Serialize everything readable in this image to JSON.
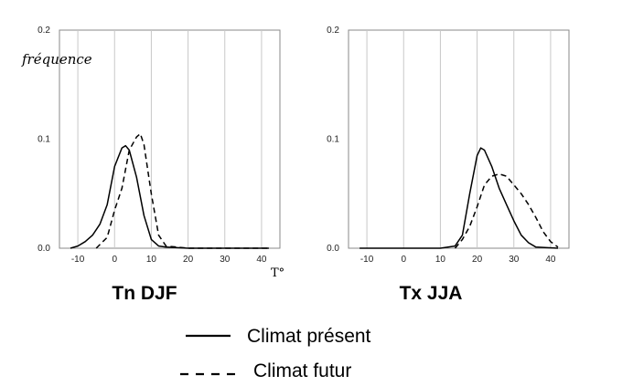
{
  "chart_data": [
    {
      "type": "line",
      "title": "Tn DJF",
      "ylabel": "fréquence",
      "xlabel": "T°",
      "xlim": [
        -15,
        45
      ],
      "ylim": [
        0,
        0.2
      ],
      "xticks": [
        "-10",
        "0",
        "10",
        "20",
        "30",
        "40"
      ],
      "xtick_values": [
        -10,
        0,
        10,
        20,
        30,
        40
      ],
      "yticks": [
        "0.0",
        "0.1",
        "0.2"
      ],
      "ytick_values": [
        0,
        0.1,
        0.2
      ],
      "grid": "vertical lines at x ticks",
      "series": [
        {
          "name": "Climat présent",
          "style": "solid",
          "x": [
            -12,
            -10,
            -8,
            -6,
            -4,
            -2,
            0,
            2,
            3,
            4,
            6,
            8,
            10,
            12,
            14,
            20,
            30,
            42
          ],
          "y": [
            0,
            0.002,
            0.006,
            0.012,
            0.022,
            0.04,
            0.075,
            0.092,
            0.094,
            0.09,
            0.065,
            0.03,
            0.008,
            0.002,
            0.001,
            0,
            0,
            0
          ]
        },
        {
          "name": "Climat futur",
          "style": "dashed",
          "x": [
            -5,
            -2,
            0,
            2,
            4,
            6,
            7,
            8,
            10,
            12,
            14,
            20,
            30,
            42
          ],
          "y": [
            0,
            0.01,
            0.035,
            0.055,
            0.09,
            0.102,
            0.105,
            0.095,
            0.05,
            0.012,
            0.002,
            0,
            0,
            0
          ]
        }
      ]
    },
    {
      "type": "line",
      "title": "Tx JJA",
      "xlim": [
        -15,
        45
      ],
      "ylim": [
        0,
        0.2
      ],
      "xticks": [
        "-10",
        "0",
        "10",
        "20",
        "30",
        "40"
      ],
      "xtick_values": [
        -10,
        0,
        10,
        20,
        30,
        40
      ],
      "yticks": [
        "0.0",
        "0.1",
        "0.2"
      ],
      "ytick_values": [
        0,
        0.1,
        0.2
      ],
      "grid": "vertical lines at x ticks",
      "series": [
        {
          "name": "Climat présent",
          "style": "solid",
          "x": [
            -12,
            0,
            10,
            14,
            16,
            18,
            20,
            21,
            22,
            24,
            26,
            28,
            30,
            32,
            34,
            36,
            42
          ],
          "y": [
            0,
            0,
            0,
            0.002,
            0.012,
            0.05,
            0.085,
            0.092,
            0.09,
            0.075,
            0.055,
            0.04,
            0.025,
            0.012,
            0.005,
            0.001,
            0
          ]
        },
        {
          "name": "Climat futur",
          "style": "dashed",
          "x": [
            14,
            16,
            18,
            20,
            22,
            24,
            26,
            28,
            30,
            32,
            34,
            36,
            38,
            40,
            42
          ],
          "y": [
            0,
            0.008,
            0.02,
            0.038,
            0.058,
            0.066,
            0.068,
            0.066,
            0.058,
            0.05,
            0.04,
            0.028,
            0.015,
            0.006,
            0.001
          ]
        }
      ]
    }
  ],
  "legend": {
    "items": [
      {
        "label": "Climat présent",
        "style": "solid"
      },
      {
        "label": "Climat futur",
        "style": "dashed"
      }
    ],
    "placement": "bottom-center"
  }
}
